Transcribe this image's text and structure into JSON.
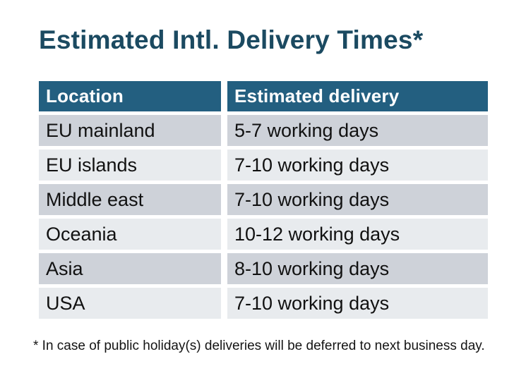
{
  "page": {
    "title": "Estimated Intl. Delivery Times*",
    "footnote": "* In case of public holiday(s) deliveries will be deferred to next business day."
  },
  "table": {
    "columns": [
      "Location",
      "Estimated delivery"
    ],
    "rows": [
      {
        "location": "EU mainland",
        "delivery": "5-7 working days"
      },
      {
        "location": "EU islands",
        "delivery": "7-10 working days"
      },
      {
        "location": "Middle east",
        "delivery": "7-10 working days"
      },
      {
        "location": "Oceania",
        "delivery": "10-12 working days"
      },
      {
        "location": "Asia",
        "delivery": "8-10 working days"
      },
      {
        "location": "USA",
        "delivery": "7-10 working days"
      }
    ]
  },
  "chart_data": {
    "type": "table",
    "title": "Estimated Intl. Delivery Times*",
    "columns": [
      "Location",
      "Estimated delivery"
    ],
    "rows": [
      [
        "EU mainland",
        "5-7 working days"
      ],
      [
        "EU islands",
        "7-10 working days"
      ],
      [
        "Middle east",
        "7-10 working days"
      ],
      [
        "Oceania",
        "10-12 working days"
      ],
      [
        "Asia",
        "8-10 working days"
      ],
      [
        "USA",
        "7-10 working days"
      ]
    ],
    "footnote": "* In case of public holiday(s) deliveries will be deferred to next business day."
  },
  "colors": {
    "title": "#1b4a61",
    "header_bg": "#235f80",
    "header_text": "#ffffff",
    "row_odd_bg": "#ced2d9",
    "row_even_bg": "#e8ebee",
    "body_text": "#111111",
    "background": "#ffffff"
  }
}
